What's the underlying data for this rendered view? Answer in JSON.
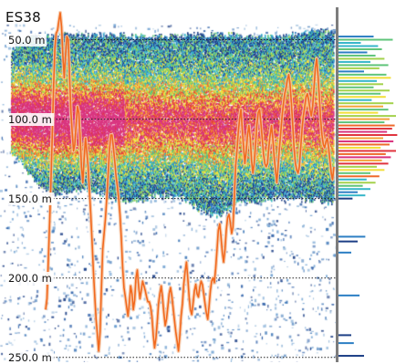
{
  "channel": {
    "label": "ES38"
  },
  "depth_axis": {
    "min_m": 25,
    "max_m": 253,
    "gridlines": [
      {
        "depth_m": 50,
        "label": "50.0 m"
      },
      {
        "depth_m": 100,
        "label": "100.0 m"
      },
      {
        "depth_m": 150,
        "label": "150.0 m"
      },
      {
        "depth_m": 200,
        "label": "200.0 m"
      },
      {
        "depth_m": 250,
        "label": "250.0 m"
      }
    ],
    "gridline_style": "dotted",
    "gridline_color": "#222222"
  },
  "school": {
    "top_depth_m": [
      56,
      52,
      49,
      48,
      48,
      48,
      47,
      47,
      47,
      47,
      47,
      47,
      47,
      48,
      48,
      48,
      48,
      48,
      48,
      47,
      47,
      47,
      47,
      47,
      47,
      48,
      48,
      48,
      48,
      48,
      47,
      46,
      45,
      44,
      45,
      46
    ],
    "bottom_depth_m": [
      120,
      126,
      134,
      141,
      145,
      146,
      145,
      144,
      144,
      145,
      147,
      149,
      151,
      151,
      150,
      149,
      148,
      147,
      148,
      151,
      155,
      158,
      160,
      158,
      155,
      152,
      151,
      150,
      150,
      149,
      149,
      149,
      150,
      150,
      151,
      151
    ],
    "core_depth_m": [
      98,
      106
    ],
    "palette": [
      "#1d3f86",
      "#2d7fc4",
      "#36b6c9",
      "#5fc47a",
      "#a4d24d",
      "#f2df3a",
      "#f4a23a",
      "#ef6a2b",
      "#e0353f",
      "#d9337f"
    ]
  },
  "track_line": {
    "color": "#f26a1f",
    "shadow_color": "#f5c6a4",
    "depth_m": [
      220,
      213,
      190,
      165,
      140,
      110,
      80,
      55,
      46,
      44,
      38,
      33,
      42,
      60,
      74,
      60,
      48,
      50,
      72,
      95,
      108,
      120,
      116,
      103,
      92,
      96,
      112,
      130,
      140,
      125,
      112,
      120,
      130,
      146,
      160,
      178,
      196,
      212,
      226,
      236,
      246,
      234,
      206,
      182,
      172,
      163,
      150,
      136,
      120,
      110,
      110,
      118,
      126,
      136,
      142,
      150,
      160,
      175,
      194,
      206,
      212,
      218,
      224,
      216,
      205,
      210,
      220,
      214,
      200,
      195,
      205,
      213,
      208,
      202,
      205,
      208,
      212,
      215,
      215,
      218,
      224,
      236,
      244,
      238,
      228,
      216,
      210,
      205,
      212,
      222,
      230,
      226,
      218,
      210,
      206,
      211,
      219,
      227,
      234,
      240,
      246,
      236,
      224,
      216,
      204,
      196,
      190,
      200,
      212,
      220,
      223,
      216,
      208,
      204,
      210,
      212,
      206,
      202,
      204,
      210,
      216,
      222,
      226,
      218,
      208,
      202,
      200,
      203,
      194,
      182,
      170,
      166,
      174,
      184,
      190,
      182,
      170,
      162,
      160,
      165,
      172,
      168,
      150,
      130,
      120,
      108,
      100,
      94,
      106,
      118,
      128,
      120,
      110,
      104,
      112,
      126,
      134,
      128,
      116,
      104,
      96,
      94,
      102,
      112,
      122,
      128,
      130,
      128,
      118,
      110,
      104,
      112,
      124,
      132,
      140,
      130,
      118,
      108,
      98,
      90,
      84,
      80,
      75,
      72,
      78,
      90,
      104,
      118,
      128,
      132,
      134,
      130,
      118,
      106,
      98,
      92,
      86,
      84,
      88,
      94,
      98,
      92,
      80,
      68,
      62,
      72,
      86,
      100,
      110,
      116,
      118,
      114,
      112,
      118,
      126,
      134,
      138,
      130
    ]
  },
  "histogram": {
    "baseline_color": "#7d7d7d",
    "bars": [
      {
        "depth_m": 48,
        "length": 0.55,
        "color": "#2d7fc4"
      },
      {
        "depth_m": 50,
        "length": 0.85,
        "color": "#5fc47a"
      },
      {
        "depth_m": 52,
        "length": 0.35,
        "color": "#36b6c9"
      },
      {
        "depth_m": 54,
        "length": 0.62,
        "color": "#36b6c9"
      },
      {
        "depth_m": 56,
        "length": 0.68,
        "color": "#5fc47a"
      },
      {
        "depth_m": 58,
        "length": 0.45,
        "color": "#2d7fc4"
      },
      {
        "depth_m": 60,
        "length": 0.58,
        "color": "#5fc47a"
      },
      {
        "depth_m": 62,
        "length": 0.72,
        "color": "#a4d24d"
      },
      {
        "depth_m": 64,
        "length": 0.5,
        "color": "#36b6c9"
      },
      {
        "depth_m": 66,
        "length": 0.78,
        "color": "#5fc47a"
      },
      {
        "depth_m": 68,
        "length": 0.64,
        "color": "#a4d24d"
      },
      {
        "depth_m": 70,
        "length": 0.4,
        "color": "#2d7fc4"
      },
      {
        "depth_m": 72,
        "length": 0.75,
        "color": "#5fc47a"
      },
      {
        "depth_m": 74,
        "length": 0.82,
        "color": "#f2df3a"
      },
      {
        "depth_m": 76,
        "length": 0.6,
        "color": "#36b6c9"
      },
      {
        "depth_m": 78,
        "length": 0.7,
        "color": "#a4d24d"
      },
      {
        "depth_m": 80,
        "length": 0.55,
        "color": "#5fc47a"
      },
      {
        "depth_m": 82,
        "length": 0.8,
        "color": "#a4d24d"
      },
      {
        "depth_m": 84,
        "length": 0.66,
        "color": "#5fc47a"
      },
      {
        "depth_m": 86,
        "length": 0.74,
        "color": "#f2df3a"
      },
      {
        "depth_m": 88,
        "length": 0.52,
        "color": "#36b6c9"
      },
      {
        "depth_m": 90,
        "length": 0.86,
        "color": "#a4d24d"
      },
      {
        "depth_m": 92,
        "length": 0.7,
        "color": "#f4a23a"
      },
      {
        "depth_m": 94,
        "length": 0.78,
        "color": "#5fc47a"
      },
      {
        "depth_m": 96,
        "length": 0.62,
        "color": "#f2df3a"
      },
      {
        "depth_m": 98,
        "length": 0.9,
        "color": "#a4d24d"
      },
      {
        "depth_m": 100,
        "length": 0.8,
        "color": "#f4a23a"
      },
      {
        "depth_m": 102,
        "length": 0.72,
        "color": "#5fc47a"
      },
      {
        "depth_m": 104,
        "length": 0.88,
        "color": "#ef6a2b"
      },
      {
        "depth_m": 106,
        "length": 0.84,
        "color": "#e0353f"
      },
      {
        "depth_m": 108,
        "length": 0.76,
        "color": "#d9337f"
      },
      {
        "depth_m": 110,
        "length": 0.92,
        "color": "#e0353f"
      },
      {
        "depth_m": 112,
        "length": 0.7,
        "color": "#f4a23a"
      },
      {
        "depth_m": 114,
        "length": 0.86,
        "color": "#d9337f"
      },
      {
        "depth_m": 116,
        "length": 0.8,
        "color": "#ef6a2b"
      },
      {
        "depth_m": 118,
        "length": 0.66,
        "color": "#f2df3a"
      },
      {
        "depth_m": 120,
        "length": 0.9,
        "color": "#e0353f"
      },
      {
        "depth_m": 122,
        "length": 0.74,
        "color": "#ef6a2b"
      },
      {
        "depth_m": 124,
        "length": 0.82,
        "color": "#d9337f"
      },
      {
        "depth_m": 126,
        "length": 0.68,
        "color": "#f4a23a"
      },
      {
        "depth_m": 128,
        "length": 0.78,
        "color": "#e0353f"
      },
      {
        "depth_m": 130,
        "length": 0.6,
        "color": "#a4d24d"
      },
      {
        "depth_m": 132,
        "length": 0.72,
        "color": "#f2df3a"
      },
      {
        "depth_m": 134,
        "length": 0.5,
        "color": "#5fc47a"
      },
      {
        "depth_m": 136,
        "length": 0.64,
        "color": "#ef6a2b"
      },
      {
        "depth_m": 138,
        "length": 0.44,
        "color": "#36b6c9"
      },
      {
        "depth_m": 140,
        "length": 0.58,
        "color": "#a4d24d"
      },
      {
        "depth_m": 142,
        "length": 0.38,
        "color": "#5fc47a"
      },
      {
        "depth_m": 144,
        "length": 0.5,
        "color": "#36b6c9"
      },
      {
        "depth_m": 146,
        "length": 0.3,
        "color": "#2d7fc4"
      },
      {
        "depth_m": 148,
        "length": 0.42,
        "color": "#36b6c9"
      },
      {
        "depth_m": 150,
        "length": 0.22,
        "color": "#1d3f86"
      },
      {
        "depth_m": 174,
        "length": 0.42,
        "color": "#2d7fc4"
      },
      {
        "depth_m": 177,
        "length": 0.3,
        "color": "#1d3f86"
      },
      {
        "depth_m": 184,
        "length": 0.2,
        "color": "#2d7fc4"
      },
      {
        "depth_m": 211,
        "length": 0.33,
        "color": "#2d7fc4"
      },
      {
        "depth_m": 236,
        "length": 0.2,
        "color": "#1d3f86"
      },
      {
        "depth_m": 241,
        "length": 0.24,
        "color": "#2d7fc4"
      },
      {
        "depth_m": 249,
        "length": 0.4,
        "color": "#1d3f86"
      }
    ]
  }
}
